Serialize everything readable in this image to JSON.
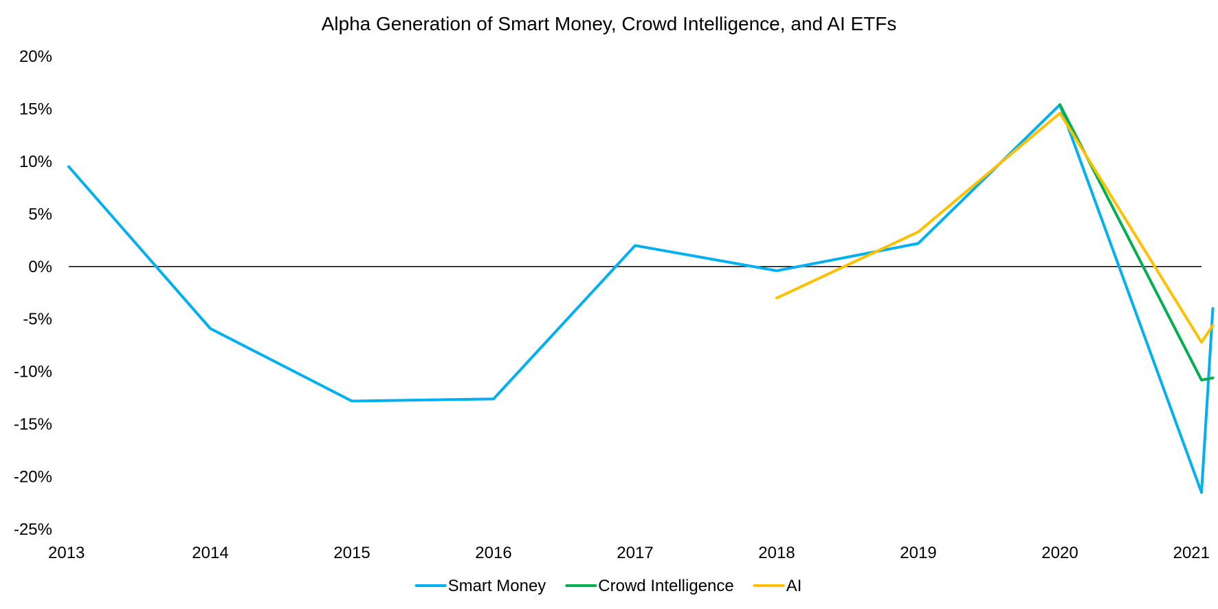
{
  "chart_data": {
    "type": "line",
    "title": "Alpha Generation of Smart Money, Crowd Intelligence, and AI ETFs",
    "xlabel": "",
    "ylabel": "",
    "x_tick_labels": [
      "2013",
      "2014",
      "2015",
      "2016",
      "2017",
      "2018",
      "2019",
      "2020",
      "2021"
    ],
    "x_range": [
      2013,
      2021
    ],
    "y_tick_labels": [
      "20%",
      "15%",
      "10%",
      "5%",
      "0%",
      "-5%",
      "-10%",
      "-15%",
      "-20%",
      "-25%"
    ],
    "ylim": [
      -25,
      20
    ],
    "y_unit": "%",
    "zero_line": true,
    "grid": false,
    "legend_position": "bottom",
    "series": [
      {
        "name": "Smart Money",
        "color": "#00B0F0",
        "x": [
          2013,
          2014,
          2015,
          2016,
          2017,
          2018,
          2019,
          2020,
          2021,
          2021.08
        ],
        "y": [
          9.5,
          -5.9,
          -12.8,
          -12.6,
          2.0,
          -0.4,
          2.2,
          15.4,
          -21.5,
          -4.0
        ]
      },
      {
        "name": "Crowd Intelligence",
        "color": "#00B050",
        "x": [
          2020,
          2021,
          2021.08
        ],
        "y": [
          15.4,
          -10.8,
          -10.6
        ]
      },
      {
        "name": "AI",
        "color": "#FFC000",
        "x": [
          2018,
          2019,
          2020,
          2021,
          2021.08
        ],
        "y": [
          -3.0,
          3.3,
          14.6,
          -7.2,
          -5.6
        ]
      }
    ]
  }
}
